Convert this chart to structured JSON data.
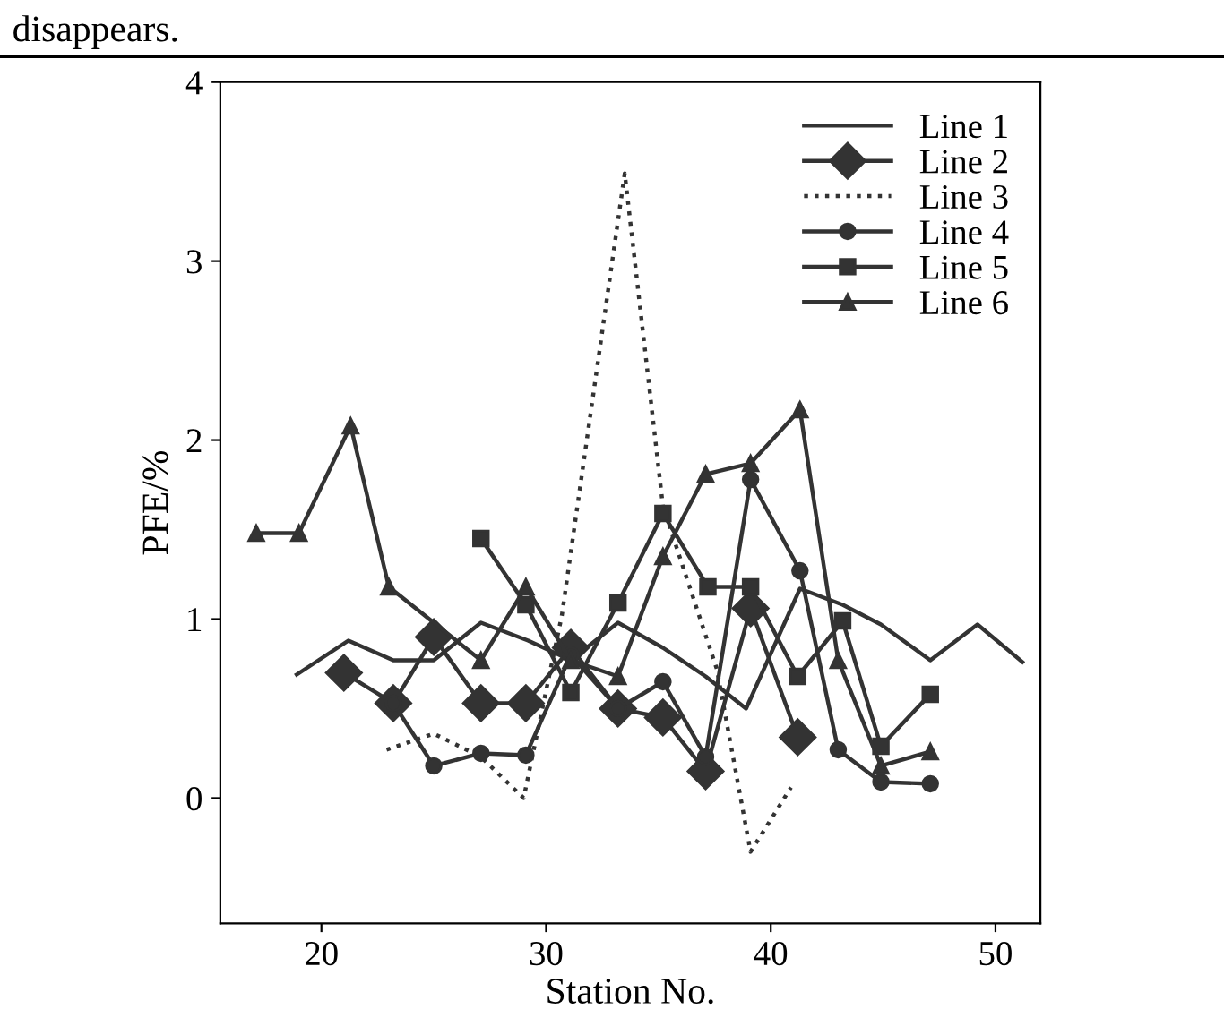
{
  "chart_data": {
    "type": "line",
    "xlabel": "Station No.",
    "ylabel": "PFE/%",
    "annotations": [
      "disappears."
    ],
    "xlim": [
      15.5,
      52
    ],
    "xticks": [
      20,
      30,
      40,
      50
    ],
    "ylim": [
      -0.7,
      4
    ],
    "yticks": [
      0,
      1,
      2,
      3,
      4
    ],
    "grid": false,
    "legend": "top right",
    "series": [
      {
        "name": "Line 1",
        "color": "#333333",
        "marker": "none",
        "line_style": "solid",
        "x": [
          18.9,
          21.2,
          23.2,
          25,
          27.1,
          29.2,
          31.1,
          33.2,
          35.2,
          37.1,
          38.9,
          41.3,
          43.2,
          44.9,
          47.1,
          49.2,
          51.2
        ],
        "values": [
          0.69,
          0.88,
          0.77,
          0.77,
          0.98,
          0.88,
          0.77,
          0.98,
          0.84,
          0.68,
          0.5,
          1.17,
          1.08,
          0.97,
          0.77,
          0.97,
          0.76
        ]
      },
      {
        "name": "Line 2",
        "color": "#333333",
        "marker": "diamond",
        "line_style": "solid",
        "x": [
          21,
          23.2,
          25,
          27.1,
          29.1,
          31.1,
          33.2,
          35.2,
          37.1,
          39.1,
          41.2
        ],
        "values": [
          0.7,
          0.53,
          0.9,
          0.53,
          0.53,
          0.84,
          0.5,
          0.45,
          0.15,
          1.06,
          0.34
        ]
      },
      {
        "name": "Line 3",
        "color": "#333333",
        "marker": "none",
        "line_style": "dotted",
        "x": [
          22.9,
          25,
          27.1,
          29,
          30.7,
          33.5,
          35.2,
          37.6,
          39.1,
          40.9
        ],
        "values": [
          0.27,
          0.36,
          0.23,
          0,
          1.02,
          3.49,
          1.63,
          0.72,
          -0.3,
          0.06
        ]
      },
      {
        "name": "Line 4",
        "color": "#333333",
        "marker": "circle",
        "line_style": "solid",
        "x": [
          23.2,
          25,
          27.1,
          29.1,
          31.1,
          33.2,
          35.2,
          37.1,
          39.1,
          41.3,
          43,
          44.9,
          47.1
        ],
        "values": [
          0.53,
          0.18,
          0.25,
          0.24,
          0.8,
          0.5,
          0.65,
          0.23,
          1.78,
          1.27,
          0.27,
          0.09,
          0.08
        ]
      },
      {
        "name": "Line 5",
        "color": "#333333",
        "marker": "square",
        "line_style": "solid",
        "x": [
          27.1,
          29.1,
          31.1,
          33.2,
          35.2,
          37.2,
          39.1,
          41.2,
          43.2,
          44.9,
          47.1
        ],
        "values": [
          1.45,
          1.08,
          0.59,
          1.09,
          1.59,
          1.18,
          1.18,
          0.68,
          0.99,
          0.29,
          0.58
        ]
      },
      {
        "name": "Line 6",
        "color": "#333333",
        "marker": "triangle",
        "line_style": "solid",
        "x": [
          17.1,
          19,
          21.3,
          23,
          27.1,
          29.1,
          31.1,
          33.2,
          35.2,
          37.1,
          39.1,
          41.3,
          43,
          44.9,
          47.1
        ],
        "values": [
          1.48,
          1.48,
          2.08,
          1.18,
          0.77,
          1.18,
          0.77,
          0.68,
          1.35,
          1.81,
          1.87,
          2.17,
          0.77,
          0.18,
          0.26
        ]
      }
    ]
  }
}
